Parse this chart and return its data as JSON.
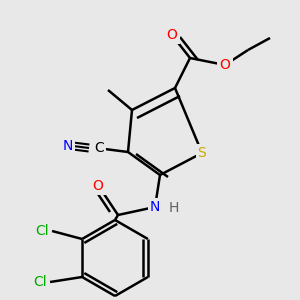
{
  "bg_color": "#e8e8e8",
  "atom_colors": {
    "O": "#ff0000",
    "N": "#0000ff",
    "S": "#ccaa00",
    "Cl": "#00aa00",
    "C": "#000000",
    "H": "#606060"
  },
  "bond_color": "#000000",
  "bond_width": 1.8
}
